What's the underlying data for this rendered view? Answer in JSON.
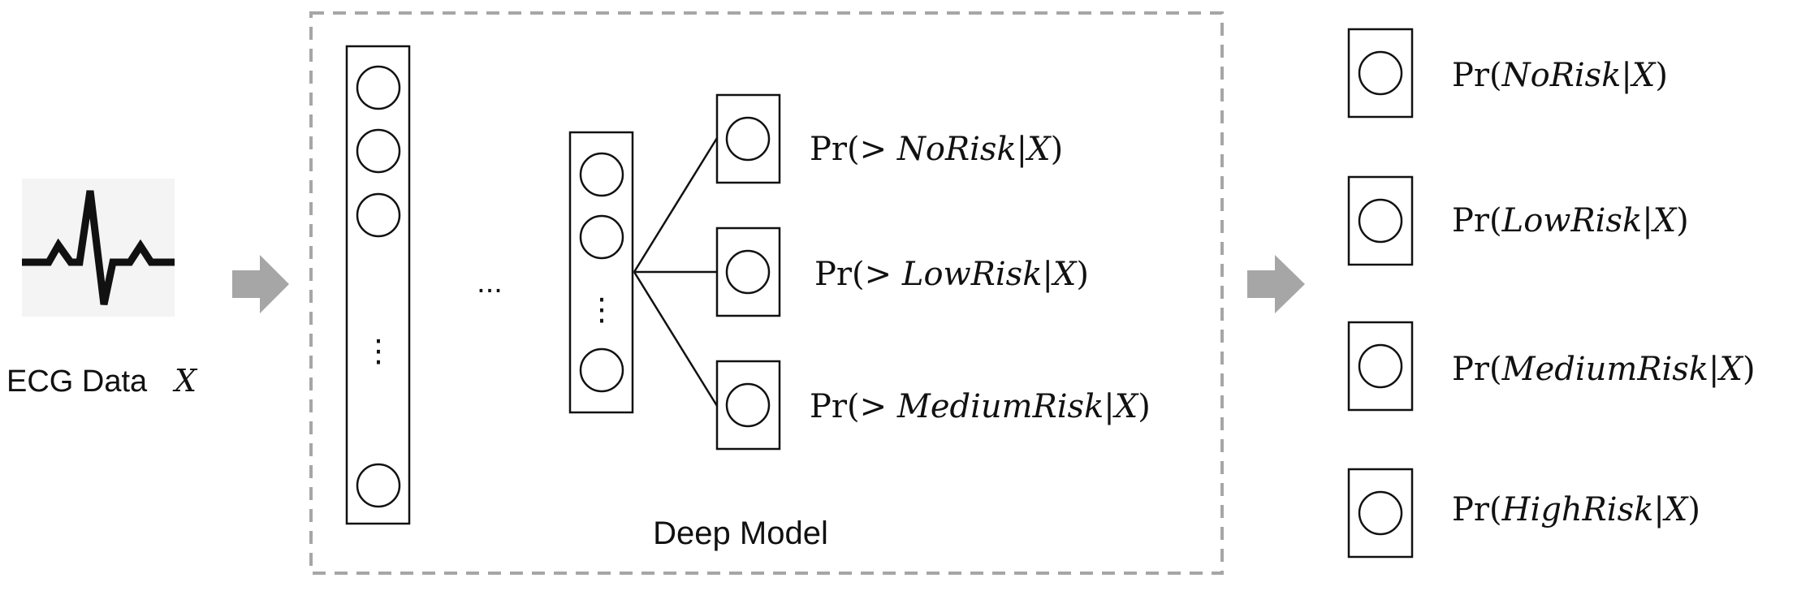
{
  "input": {
    "label": "ECG Data",
    "variable": "X",
    "icon": "ecg-waveform-icon"
  },
  "model": {
    "label": "Deep Model",
    "layer_ellipsis": "...",
    "vertical_ellipsis": "⋮",
    "cumulative_outputs": [
      {
        "prefix": "Pr(> ",
        "risk": "NoRisk",
        "sep": "|",
        "var": "X",
        "suffix": ")"
      },
      {
        "prefix": "Pr(> ",
        "risk": "LowRisk",
        "sep": "|",
        "var": "X",
        "suffix": ")"
      },
      {
        "prefix": "Pr(> ",
        "risk": "MediumRisk",
        "sep": "|",
        "var": "X",
        "suffix": ")"
      }
    ]
  },
  "class_outputs": [
    {
      "prefix": "Pr(",
      "risk": "NoRisk",
      "sep": "|",
      "var": "X",
      "suffix": ")"
    },
    {
      "prefix": "Pr(",
      "risk": "LowRisk",
      "sep": "|",
      "var": "X",
      "suffix": ")"
    },
    {
      "prefix": "Pr(",
      "risk": "MediumRisk",
      "sep": "|",
      "var": "X",
      "suffix": ")"
    },
    {
      "prefix": "Pr(",
      "risk": "HighRisk",
      "sep": "|",
      "var": "X",
      "suffix": ")"
    }
  ],
  "colors": {
    "stroke": "#111111",
    "arrow": "#a6a6a6",
    "dashed_border": "#a6a6a6",
    "ecg_background": "#f4f4f4"
  }
}
